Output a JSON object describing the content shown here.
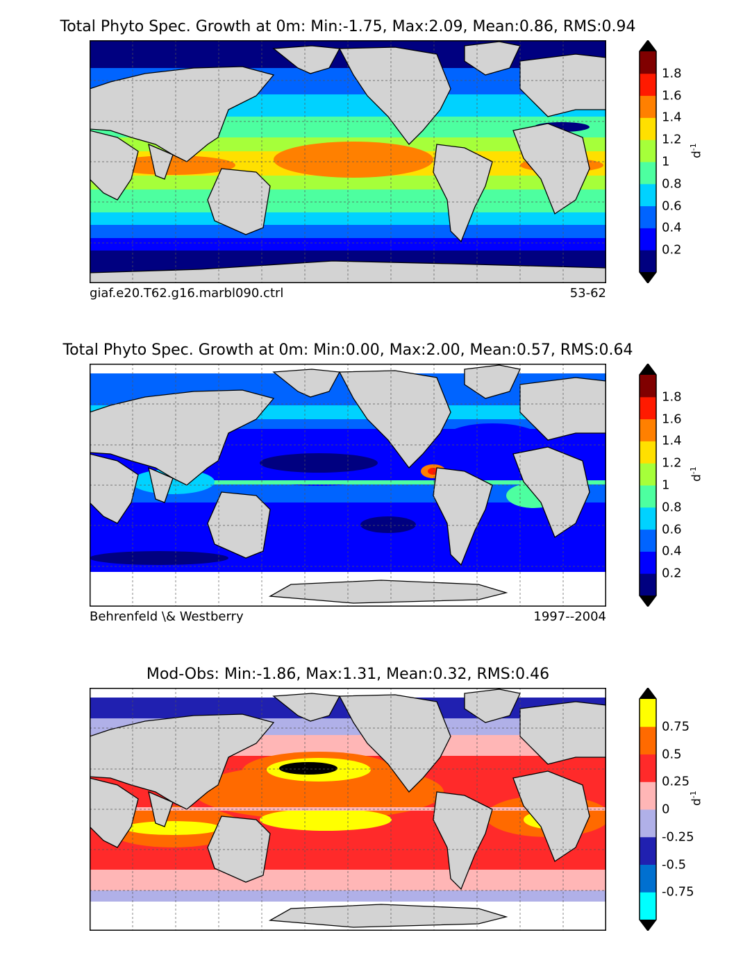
{
  "panels": [
    {
      "title": "Total Phyto Spec. Growth at 0m: Min:-1.75, Max:2.09, Mean:0.86, RMS:0.94",
      "caption_left": "giaf.e20.T62.g16.marbl090.ctrl",
      "caption_right": "53-62",
      "colorbar": {
        "colors": [
          "#000080",
          "#0000ff",
          "#0064ff",
          "#00d2ff",
          "#4dffa0",
          "#a6ff3a",
          "#ffe000",
          "#ff8000",
          "#ff1a00",
          "#800000"
        ],
        "ticks": [
          "0.2",
          "0.4",
          "0.6",
          "0.8",
          "1",
          "1.2",
          "1.4",
          "1.6",
          "1.8"
        ],
        "unit": "d",
        "unit_exp": "-1"
      }
    },
    {
      "title": "Total Phyto Spec. Growth at 0m: Min:0.00, Max:2.00, Mean:0.57, RMS:0.64",
      "caption_left": "Behrenfeld \\& Westberry",
      "caption_right": "1997--2004",
      "colorbar": {
        "colors": [
          "#000080",
          "#0000ff",
          "#0064ff",
          "#00d2ff",
          "#4dffa0",
          "#a6ff3a",
          "#ffe000",
          "#ff8000",
          "#ff1a00",
          "#800000"
        ],
        "ticks": [
          "0.2",
          "0.4",
          "0.6",
          "0.8",
          "1",
          "1.2",
          "1.4",
          "1.6",
          "1.8"
        ],
        "unit": "d",
        "unit_exp": "-1"
      }
    },
    {
      "title": "Mod-Obs: Min:-1.86, Max:1.31, Mean:0.32, RMS:0.46",
      "caption_left": "",
      "caption_right": "",
      "colorbar": {
        "colors": [
          "#00ffff",
          "#0070d0",
          "#2020b0",
          "#b0b0e8",
          "#ffb6b6",
          "#ff2a2a",
          "#ff6a00",
          "#ffff00"
        ],
        "ticks": [
          "-0.75",
          "-0.5",
          "-0.25",
          "0",
          "0.25",
          "0.5",
          "0.75"
        ],
        "unit": "d",
        "unit_exp": "-1"
      }
    }
  ],
  "colors": {
    "land": "#d3d3d3",
    "nodata": "#ffffff",
    "extend_arrow": "#000000",
    "coastline": "#000000"
  }
}
